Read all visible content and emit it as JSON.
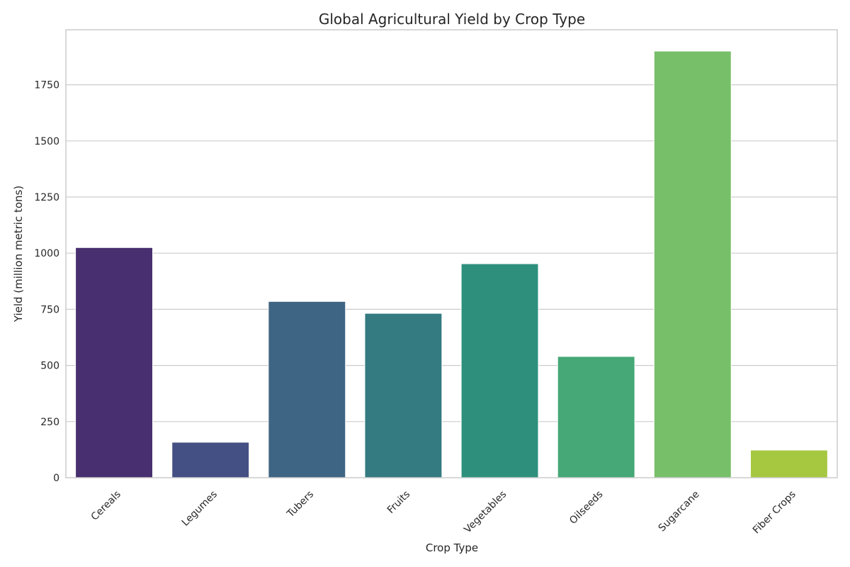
{
  "chart_data": {
    "type": "bar",
    "title": "Global Agricultural Yield by Crop Type",
    "xlabel": "Crop Type",
    "ylabel": "Yield (million metric tons)",
    "categories": [
      "Cereals",
      "Legumes",
      "Tubers",
      "Fruits",
      "Vegetables",
      "Oilseeds",
      "Sugarcane",
      "Fiber Crops"
    ],
    "values": [
      1025,
      158,
      785,
      732,
      953,
      540,
      1900,
      123
    ],
    "colors": [
      "#482f6f",
      "#444f83",
      "#3e6583",
      "#347a81",
      "#2e8f7c",
      "#45a876",
      "#77bf69",
      "#a6c841"
    ],
    "yticks": [
      0,
      250,
      500,
      750,
      1000,
      1250,
      1500,
      1750
    ],
    "ylim": [
      0,
      1995
    ],
    "grid": true,
    "legend": "none"
  }
}
